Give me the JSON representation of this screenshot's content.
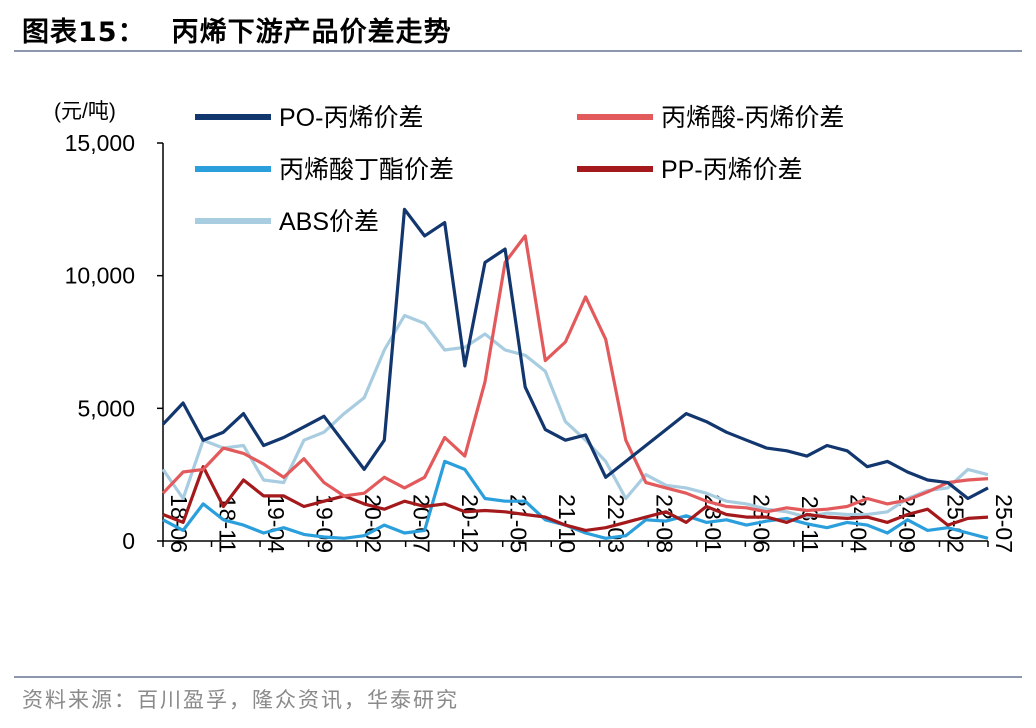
{
  "figure": {
    "label": "图表15：",
    "title": "丙烯下游产品价差走势",
    "source": "资料来源：百川盈孚，隆众资讯，华泰研究"
  },
  "chart_data": {
    "type": "line",
    "y_unit": "(元/吨)",
    "ylim": [
      0,
      15000
    ],
    "yticks": [
      0,
      5000,
      10000,
      15000
    ],
    "ytick_labels": [
      "0",
      "5,000",
      "10,000",
      "15,000"
    ],
    "x_tick_labels": [
      "18-06",
      "18-11",
      "19-04",
      "19-09",
      "20-02",
      "20-07",
      "20-12",
      "21-05",
      "21-10",
      "22-03",
      "22-08",
      "23-01",
      "23-06",
      "23-11",
      "24-04",
      "24-09",
      "25-02",
      "25-07"
    ],
    "grid": false,
    "legend_position": "top",
    "series": [
      {
        "name": "PO-丙烯价差",
        "color": "#12366e",
        "values": [
          4400,
          5200,
          3800,
          4100,
          4800,
          3600,
          3900,
          4300,
          4700,
          3700,
          2700,
          3800,
          12500,
          11500,
          12000,
          6600,
          10500,
          11000,
          5800,
          4200,
          3800,
          4000,
          2400,
          3000,
          3600,
          4200,
          4800,
          4500,
          4100,
          3800,
          3500,
          3400,
          3200,
          3600,
          3400,
          2800,
          3000,
          2600,
          2300,
          2200,
          1600,
          2000
        ]
      },
      {
        "name": "丙烯酸-丙烯价差",
        "color": "#e35a5c",
        "values": [
          1800,
          2600,
          2700,
          3500,
          3300,
          2900,
          2400,
          3100,
          2200,
          1700,
          1800,
          2400,
          2000,
          2400,
          3900,
          3200,
          6000,
          10500,
          11500,
          6800,
          7500,
          9200,
          7600,
          3800,
          2200,
          2000,
          1800,
          1500,
          1300,
          1250,
          1100,
          1250,
          1150,
          1200,
          1300,
          1600,
          1400,
          1550,
          1850,
          2200,
          2300,
          2350
        ]
      },
      {
        "name": "丙烯酸丁酯价差",
        "color": "#2a9fdc",
        "values": [
          800,
          400,
          1400,
          800,
          600,
          300,
          500,
          250,
          150,
          100,
          200,
          600,
          300,
          400,
          3000,
          2700,
          1600,
          1500,
          1500,
          800,
          600,
          300,
          100,
          200,
          800,
          750,
          950,
          700,
          800,
          600,
          750,
          850,
          650,
          500,
          700,
          600,
          300,
          800,
          400,
          500,
          300,
          100
        ]
      },
      {
        "name": "PP-丙烯价差",
        "color": "#a41a1c",
        "values": [
          1000,
          700,
          2800,
          1300,
          2300,
          1700,
          1700,
          1300,
          1500,
          1700,
          1400,
          1200,
          1500,
          1300,
          1400,
          1100,
          1150,
          1100,
          1000,
          900,
          600,
          400,
          500,
          700,
          900,
          1100,
          700,
          1300,
          1000,
          900,
          900,
          700,
          1000,
          900,
          850,
          900,
          700,
          1000,
          1200,
          600,
          850,
          900
        ]
      },
      {
        "name": "ABS价差",
        "color": "#a8cce0",
        "values": [
          2700,
          1600,
          3800,
          3500,
          3600,
          2300,
          2200,
          3800,
          4100,
          4800,
          5400,
          7200,
          8500,
          8200,
          7200,
          7300,
          7800,
          7200,
          7000,
          6400,
          4500,
          3800,
          3000,
          1600,
          2500,
          2100,
          2000,
          1800,
          1500,
          1400,
          1200,
          1100,
          900,
          1050,
          1000,
          1000,
          1100,
          1600,
          1900,
          2000,
          2700,
          2500
        ]
      }
    ]
  }
}
